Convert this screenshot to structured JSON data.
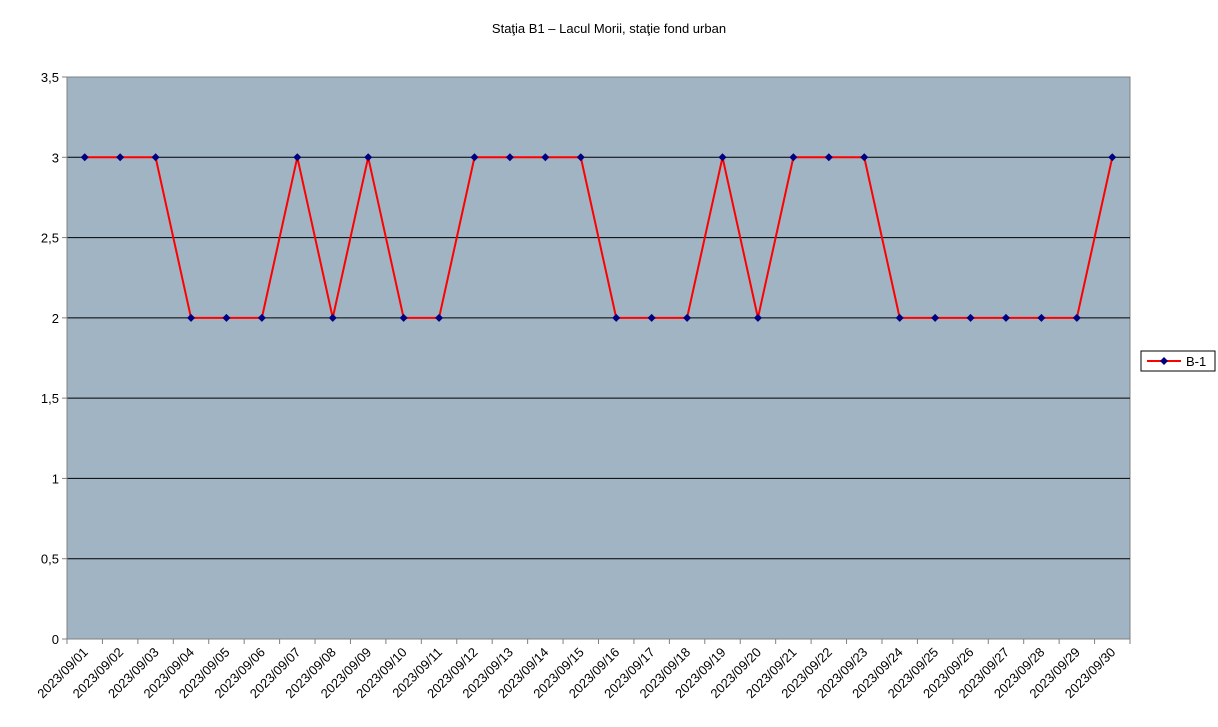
{
  "chart_data": {
    "type": "line",
    "title": "Staţia B1 – Lacul Morii, staţie fond urban",
    "xlabel": "",
    "ylabel": "",
    "ylim": [
      0,
      3.5
    ],
    "y_ticks": [
      "0",
      "0,5",
      "1",
      "1,5",
      "2",
      "2,5",
      "3",
      "3,5"
    ],
    "grid": true,
    "legend_position": "right",
    "colors": {
      "plot_background": "#a0b4c4",
      "line": "#ff0000",
      "marker": "#000080",
      "grid": "#000000"
    },
    "categories": [
      "2023/09/01",
      "2023/09/02",
      "2023/09/03",
      "2023/09/04",
      "2023/09/05",
      "2023/09/06",
      "2023/09/07",
      "2023/09/08",
      "2023/09/09",
      "2023/09/10",
      "2023/09/11",
      "2023/09/12",
      "2023/09/13",
      "2023/09/14",
      "2023/09/15",
      "2023/09/16",
      "2023/09/17",
      "2023/09/18",
      "2023/09/19",
      "2023/09/20",
      "2023/09/21",
      "2023/09/22",
      "2023/09/23",
      "2023/09/24",
      "2023/09/25",
      "2023/09/26",
      "2023/09/27",
      "2023/09/28",
      "2023/09/29",
      "2023/09/30"
    ],
    "series": [
      {
        "name": "B-1",
        "values": [
          3,
          3,
          3,
          2,
          2,
          2,
          3,
          2,
          3,
          2,
          2,
          3,
          3,
          3,
          3,
          2,
          2,
          2,
          3,
          2,
          3,
          3,
          3,
          2,
          2,
          2,
          2,
          2,
          2,
          3
        ]
      }
    ]
  }
}
